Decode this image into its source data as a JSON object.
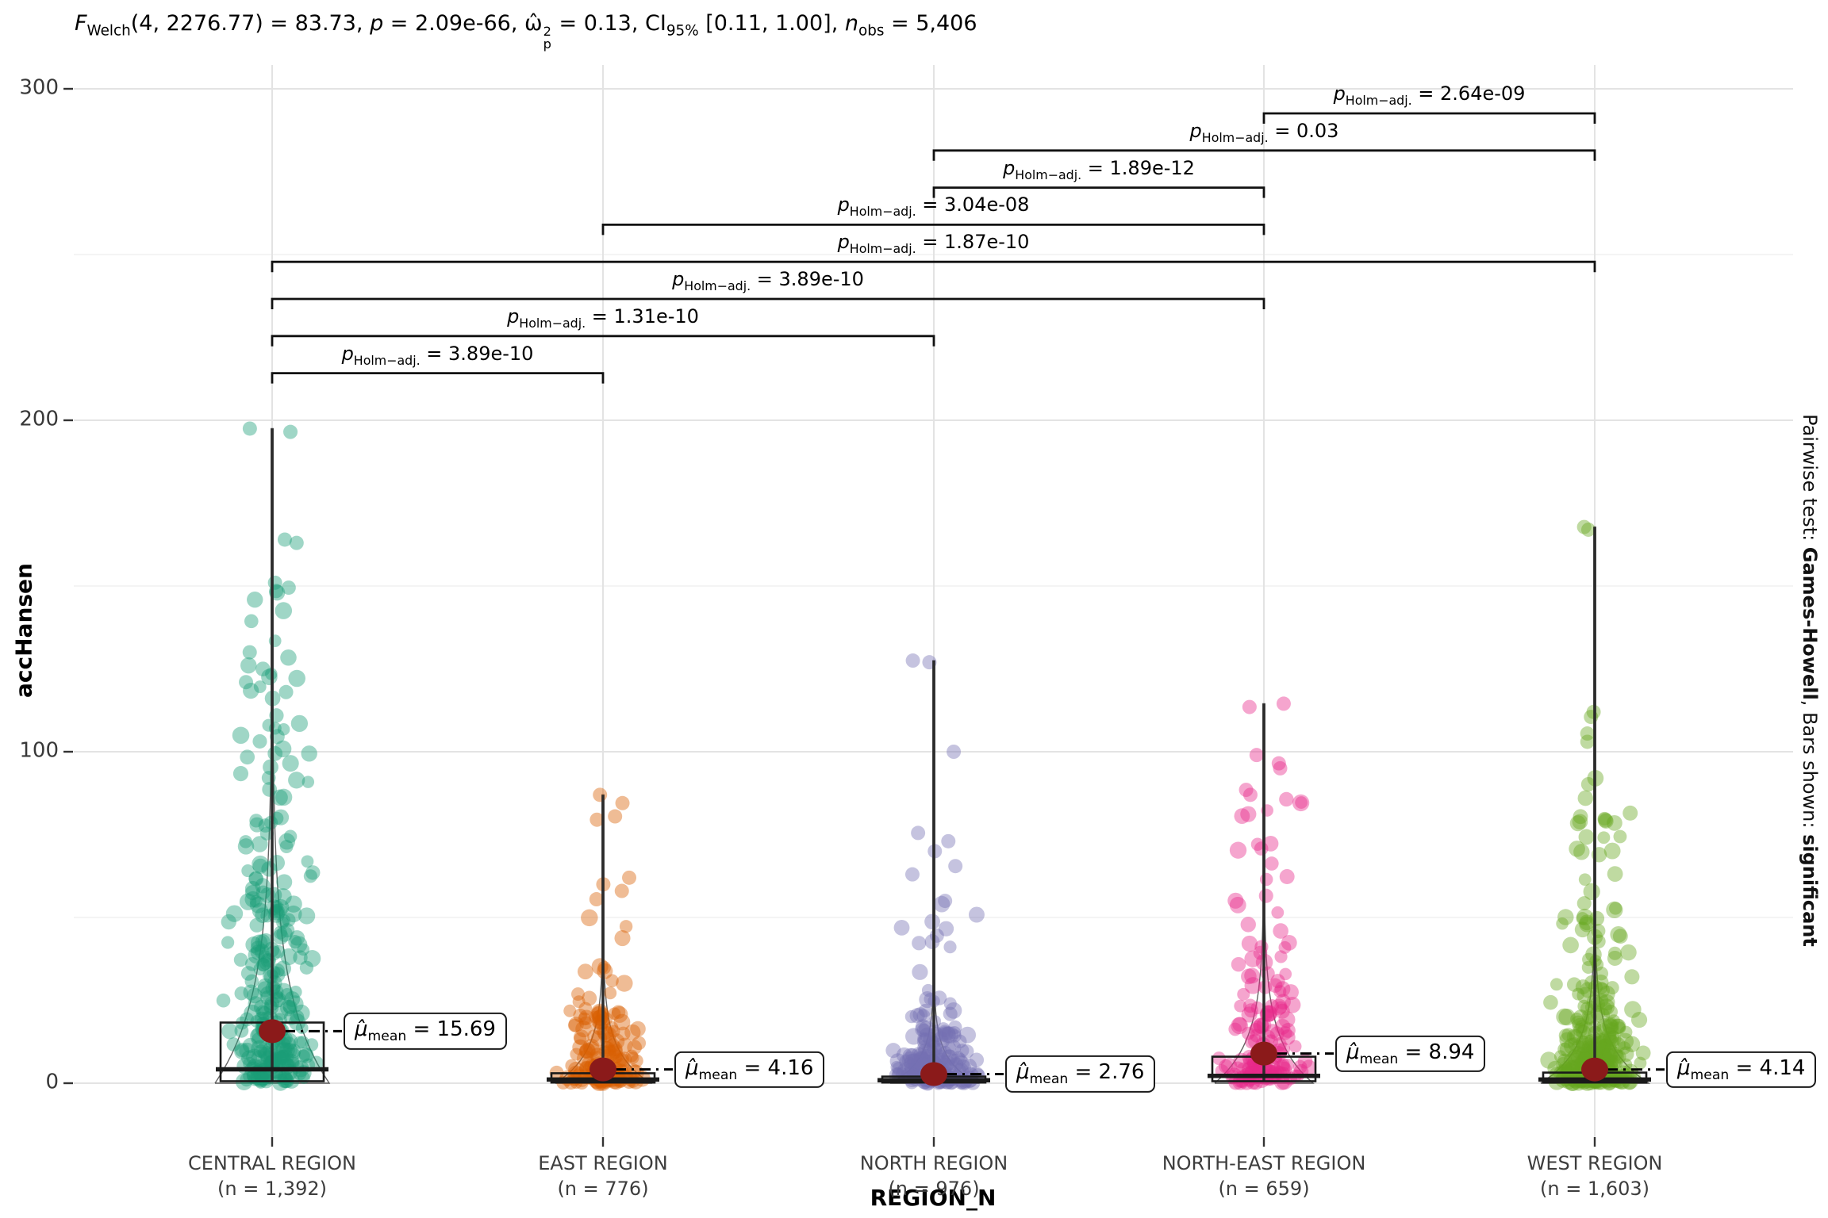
{
  "figure": {
    "stat_header": {
      "f": "F",
      "f_sub": "Welch",
      "f_rest": "(4, 2276.77) = 83.73, ",
      "p": "p",
      "p_rest": " = 2.09e-66, ",
      "omega": "ω̂",
      "omega_sup": "2",
      "omega_sub": "p",
      "omega_rest": " = 0.13, ",
      "ci": "CI",
      "ci_sub": "95%",
      "ci_rest": " [0.11, 1.00], ",
      "n": "n",
      "n_sub": "obs",
      "n_rest": " = 5,406"
    },
    "y_axis_title": "accHansen",
    "x_axis_title": "REGION_N",
    "right_caption": {
      "prefix": "Pairwise test: ",
      "test": "Games-Howell",
      "mid": ", Bars shown: ",
      "emph": "significant"
    },
    "symbols": {
      "mu": "μ̂",
      "mu_sub": "mean",
      "p": "p",
      "p_sub": "Holm−adj.",
      "eq": " = "
    }
  },
  "chart_data": {
    "type": "box-violin-jitter",
    "test_annotation": "F_Welch(4, 2276.77) = 83.73, p = 2.09e-66, ω̂²p = 0.13, CI 95% [0.11, 1.00], n_obs = 5,406",
    "xlabel": "REGION_N",
    "ylabel": "accHansen",
    "ylim": [
      -18,
      312
    ],
    "yticks": [
      0,
      100,
      200,
      300
    ],
    "yticks_minor": [
      50,
      150,
      250
    ],
    "grid": true,
    "pairwise_test": "Games-Howell",
    "bars_shown": "significant",
    "p_adjust_method": "Holm",
    "centrality_point_color": "#8B1A1A",
    "categories": [
      {
        "label": "CENTRAL REGION",
        "n_label": "(n = 1,392)",
        "n": 1392,
        "color": "#1B9E77",
        "mean": 15.69,
        "mean_label": "15.69",
        "q1": 0.6,
        "median": 4.2,
        "q3": 18.3,
        "whisker_high": 197.5,
        "points_max": 197.5,
        "tail_points": [
          197.5,
          196.5,
          164,
          163,
          151,
          149.5,
          148.5,
          130,
          121,
          118
        ],
        "profile": {
          "scale": 22,
          "dense_max": 80,
          "mid_max": 150,
          "frac_mid": 0.22
        }
      },
      {
        "label": "EAST REGION",
        "n_label": "(n = 776)",
        "n": 776,
        "color": "#D95F02",
        "mean": 4.16,
        "mean_label": "4.16",
        "q1": 0.2,
        "median": 1.1,
        "q3": 3.0,
        "whisker_high": 87,
        "points_max": 87,
        "tail_points": [
          87,
          84.5,
          80.5,
          79.5,
          62,
          60,
          58,
          55.5
        ],
        "profile": {
          "scale": 8,
          "dense_max": 40,
          "mid_max": 56,
          "frac_mid": 0.12
        }
      },
      {
        "label": "NORTH REGION",
        "n_label": "(n = 976)",
        "n": 976,
        "color": "#7570B3",
        "mean": 2.76,
        "mean_label": "2.76",
        "q1": 0.2,
        "median": 0.9,
        "q3": 2.0,
        "whisker_high": 127.5,
        "points_max": 127.5,
        "tail_points": [
          127.5,
          127,
          100,
          75.5,
          73,
          70,
          65.5,
          63,
          55
        ],
        "profile": {
          "scale": 6,
          "dense_max": 32,
          "mid_max": 58,
          "frac_mid": 0.12
        }
      },
      {
        "label": "NORTH-EAST REGION",
        "n_label": "(n = 659)",
        "n": 659,
        "color": "#E7298A",
        "mean": 8.94,
        "mean_label": "8.94",
        "q1": 0.6,
        "median": 2.2,
        "q3": 8.0,
        "whisker_high": 114.5,
        "points_max": 114.5,
        "tail_points": [
          114.5,
          113.5,
          99,
          96.5,
          95,
          88.5,
          87
        ],
        "profile": {
          "scale": 11,
          "dense_max": 46,
          "mid_max": 86,
          "frac_mid": 0.25
        }
      },
      {
        "label": "WEST REGION",
        "n_label": "(n = 1,603)",
        "n": 1603,
        "color": "#66A61E",
        "mean": 4.14,
        "mean_label": "4.14",
        "q1": 0.2,
        "median": 1.1,
        "q3": 3.2,
        "whisker_high": 167.8,
        "points_max": 167.8,
        "tail_points": [
          167.8,
          167,
          112,
          110.5,
          105.5,
          103
        ],
        "profile": {
          "scale": 9,
          "dense_max": 50,
          "mid_max": 93,
          "frac_mid": 0.2
        }
      }
    ],
    "pairwise": [
      {
        "group1": "NORTH-EAST REGION",
        "group2": "WEST REGION",
        "a": 3,
        "b": 4,
        "p_label": "2.64e-09"
      },
      {
        "group1": "NORTH REGION",
        "group2": "WEST REGION",
        "a": 2,
        "b": 4,
        "p_label": "0.03"
      },
      {
        "group1": "NORTH REGION",
        "group2": "NORTH-EAST REGION",
        "a": 2,
        "b": 3,
        "p_label": "1.89e-12"
      },
      {
        "group1": "EAST REGION",
        "group2": "NORTH-EAST REGION",
        "a": 1,
        "b": 3,
        "p_label": "3.04e-08"
      },
      {
        "group1": "CENTRAL REGION",
        "group2": "WEST REGION",
        "a": 0,
        "b": 4,
        "p_label": "1.87e-10"
      },
      {
        "group1": "CENTRAL REGION",
        "group2": "NORTH-EAST REGION",
        "a": 0,
        "b": 3,
        "p_label": "3.89e-10"
      },
      {
        "group1": "CENTRAL REGION",
        "group2": "NORTH REGION",
        "a": 0,
        "b": 2,
        "p_label": "1.31e-10"
      },
      {
        "group1": "CENTRAL REGION",
        "group2": "EAST REGION",
        "a": 0,
        "b": 1,
        "p_label": "3.89e-10"
      }
    ],
    "style": {
      "grid_major_color": "#E3E3E3",
      "grid_minor_color": "#F0F0F0",
      "tick_color": "#333333",
      "bracket_color": "#111111",
      "box_color": "#1a1a1a"
    }
  }
}
